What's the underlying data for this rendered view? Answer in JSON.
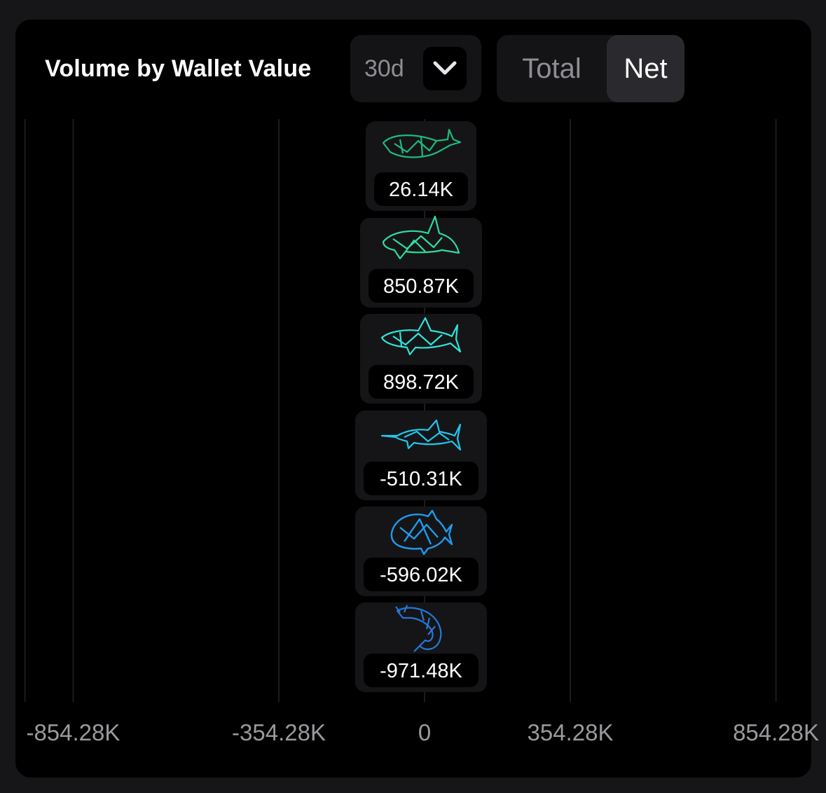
{
  "header": {
    "title": "Volume by Wallet Value",
    "period": "30d",
    "toggle": {
      "total_label": "Total",
      "net_label": "Net",
      "active": "Net"
    }
  },
  "colors": {
    "positive": "#0fe04a",
    "negative": "#e8412f",
    "icons": [
      "#1dbb7d",
      "#2fdc9c",
      "#2ee5d8",
      "#22c6ec",
      "#1e9bef",
      "#2578d8"
    ]
  },
  "chart_data": {
    "type": "bar",
    "orientation": "horizontal",
    "categories": [
      "whale-icon",
      "orca-icon",
      "shark-icon",
      "swordfish-icon",
      "fish-icon",
      "shrimp-icon"
    ],
    "values": [
      26140,
      850870,
      898720,
      -510310,
      -596020,
      -971480
    ],
    "value_labels": [
      "26.14K",
      "850.87K",
      "898.72K",
      "-510.31K",
      "-596.02K",
      "-971.48K"
    ],
    "x_ticks": [
      -854280,
      -354280,
      0,
      354280,
      854280
    ],
    "x_tick_labels": [
      "-854.28K",
      "-354.28K",
      "0",
      "354.28K",
      "854.28K"
    ],
    "xlim": [
      -971480,
      1126000
    ],
    "grid": true
  }
}
